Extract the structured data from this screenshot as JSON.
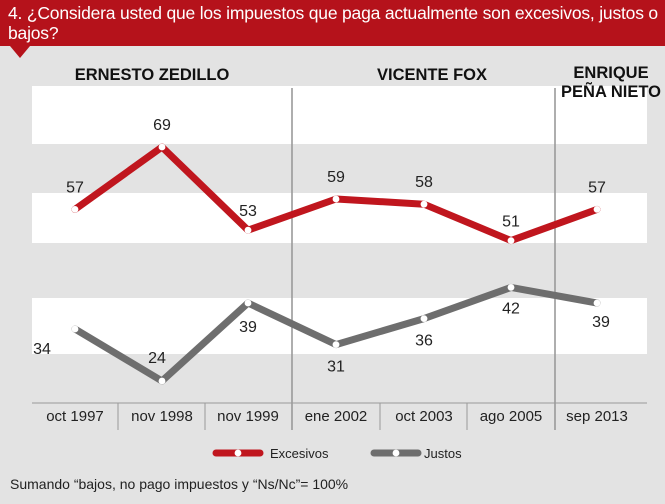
{
  "header": {
    "question": "4. ¿Considera usted que los impuestos que paga actualmente son excesivos, justos o bajos?"
  },
  "periods": [
    {
      "label": "ERNESTO  ZEDILLO"
    },
    {
      "label": "VICENTE FOX"
    },
    {
      "label_lines": [
        "ENRIQUE",
        "PEÑA NIETO"
      ]
    }
  ],
  "chart_data": {
    "type": "line",
    "categories": [
      "oct 1997",
      "nov 1998",
      "nov 1999",
      "ene 2002",
      "oct 2003",
      "ago 2005",
      "sep 2013"
    ],
    "series": [
      {
        "name": "Excesivos",
        "values": [
          57,
          69,
          53,
          59,
          58,
          51,
          57
        ],
        "color": "#c0161e"
      },
      {
        "name": "Justos",
        "values": [
          34,
          24,
          39,
          31,
          36,
          42,
          39
        ],
        "color": "#6e6e6e"
      }
    ],
    "legend_placement": "bottom"
  },
  "colors": {
    "header_bg": "#b5121b",
    "band_white": "#ffffff",
    "background": "#e3e3e3"
  },
  "footer": {
    "note": "Sumando   “bajos, no pago impuestos  y “Ns/Nc”= 100%"
  }
}
